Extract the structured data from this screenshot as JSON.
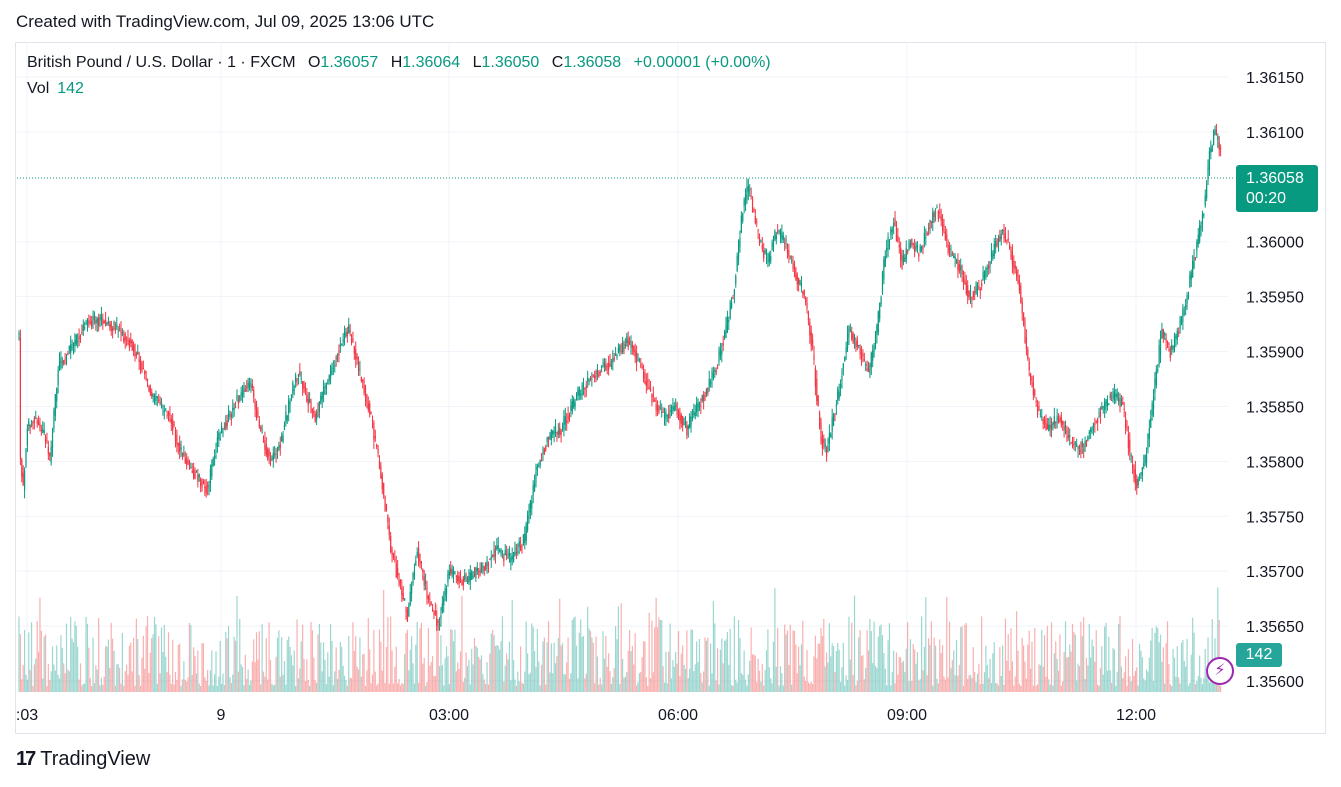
{
  "caption": "Created with TradingView.com, Jul 09, 2025 13:06 UTC",
  "legend": {
    "symbol": "British Pound / U.S. Dollar · 1 · FXCM",
    "open_label": "O",
    "open": "1.36057",
    "high_label": "H",
    "high": "1.36064",
    "low_label": "L",
    "low": "1.36050",
    "close_label": "C",
    "close": "1.36058",
    "change": "+0.00001 (+0.00%)"
  },
  "volume_legend": {
    "label": "Vol",
    "value": "142"
  },
  "last_price_badge": {
    "price": "1.36058",
    "countdown": "00:20"
  },
  "volume_badge": "142",
  "footer": {
    "logo": "17",
    "brand": "TradingView"
  },
  "colors": {
    "up": "#089981",
    "down": "#f23645",
    "up_volume": "#26a69a",
    "down_volume": "#ef5350",
    "grid": "#f0f3fa"
  },
  "chart_data": {
    "type": "candlestick",
    "y_ticks": [
      "1.36150",
      "1.36100",
      "1.36000",
      "1.35950",
      "1.35900",
      "1.35850",
      "1.35800",
      "1.35750",
      "1.35700",
      "1.35650",
      "1.35600"
    ],
    "ylim": [
      1.35595,
      1.36172
    ],
    "x_ticks": [
      ":03",
      "9",
      "03:00",
      "06:00",
      "09:00",
      "12:00"
    ],
    "last_price": 1.36058,
    "anchors": [
      [
        0,
        1.35915
      ],
      [
        1,
        1.358
      ],
      [
        3,
        1.35775
      ],
      [
        6,
        1.3583
      ],
      [
        10,
        1.3584
      ],
      [
        18,
        1.35825
      ],
      [
        22,
        1.358
      ],
      [
        28,
        1.35885
      ],
      [
        36,
        1.359
      ],
      [
        48,
        1.35925
      ],
      [
        60,
        1.3593
      ],
      [
        70,
        1.3592
      ],
      [
        82,
        1.35905
      ],
      [
        95,
        1.3586
      ],
      [
        108,
        1.3584
      ],
      [
        115,
        1.3581
      ],
      [
        125,
        1.3579
      ],
      [
        135,
        1.35775
      ],
      [
        142,
        1.3582
      ],
      [
        150,
        1.3584
      ],
      [
        158,
        1.3586
      ],
      [
        166,
        1.3587
      ],
      [
        172,
        1.3583
      ],
      [
        180,
        1.358
      ],
      [
        188,
        1.3582
      ],
      [
        194,
        1.3586
      ],
      [
        200,
        1.3588
      ],
      [
        206,
        1.3586
      ],
      [
        212,
        1.3584
      ],
      [
        220,
        1.3587
      ],
      [
        228,
        1.359
      ],
      [
        236,
        1.3592
      ],
      [
        244,
        1.3588
      ],
      [
        252,
        1.3584
      ],
      [
        260,
        1.3578
      ],
      [
        266,
        1.3572
      ],
      [
        272,
        1.3569
      ],
      [
        278,
        1.3566
      ],
      [
        285,
        1.3572
      ],
      [
        292,
        1.3568
      ],
      [
        300,
        1.3565
      ],
      [
        308,
        1.357
      ],
      [
        318,
        1.3569
      ],
      [
        330,
        1.357
      ],
      [
        342,
        1.3572
      ],
      [
        352,
        1.3571
      ],
      [
        362,
        1.3573
      ],
      [
        370,
        1.3579
      ],
      [
        378,
        1.3582
      ],
      [
        388,
        1.3583
      ],
      [
        400,
        1.3586
      ],
      [
        412,
        1.3588
      ],
      [
        424,
        1.3589
      ],
      [
        436,
        1.3591
      ],
      [
        444,
        1.3589
      ],
      [
        452,
        1.3586
      ],
      [
        462,
        1.3584
      ],
      [
        470,
        1.3585
      ],
      [
        478,
        1.3583
      ],
      [
        486,
        1.3585
      ],
      [
        494,
        1.3587
      ],
      [
        500,
        1.3589
      ],
      [
        506,
        1.3592
      ],
      [
        512,
        1.3596
      ],
      [
        518,
        1.3603
      ],
      [
        522,
        1.3605
      ],
      [
        530,
        1.36
      ],
      [
        536,
        1.3598
      ],
      [
        542,
        1.3601
      ],
      [
        548,
        1.36
      ],
      [
        556,
        1.3597
      ],
      [
        562,
        1.3595
      ],
      [
        568,
        1.359
      ],
      [
        574,
        1.3582
      ],
      [
        578,
        1.3581
      ],
      [
        586,
        1.3586
      ],
      [
        594,
        1.3592
      ],
      [
        602,
        1.359
      ],
      [
        608,
        1.3588
      ],
      [
        614,
        1.3592
      ],
      [
        620,
        1.3599
      ],
      [
        626,
        1.3602
      ],
      [
        632,
        1.3598
      ],
      [
        638,
        1.36
      ],
      [
        644,
        1.3599
      ],
      [
        650,
        1.3601
      ],
      [
        656,
        1.3603
      ],
      [
        660,
        1.3602
      ],
      [
        666,
        1.3599
      ],
      [
        672,
        1.3598
      ],
      [
        680,
        1.3595
      ],
      [
        688,
        1.3596
      ],
      [
        694,
        1.3598
      ],
      [
        700,
        1.36
      ],
      [
        704,
        1.3601
      ],
      [
        710,
        1.3599
      ],
      [
        716,
        1.3596
      ],
      [
        722,
        1.3589
      ],
      [
        728,
        1.3585
      ],
      [
        736,
        1.3583
      ],
      [
        744,
        1.3584
      ],
      [
        752,
        1.3582
      ],
      [
        760,
        1.3581
      ],
      [
        768,
        1.3583
      ],
      [
        776,
        1.3585
      ],
      [
        784,
        1.3586
      ],
      [
        790,
        1.3585
      ],
      [
        796,
        1.358
      ],
      [
        800,
        1.3578
      ],
      [
        806,
        1.358
      ],
      [
        812,
        1.3586
      ],
      [
        818,
        1.3592
      ],
      [
        824,
        1.359
      ],
      [
        830,
        1.3592
      ],
      [
        836,
        1.3595
      ],
      [
        842,
        1.3599
      ],
      [
        848,
        1.3603
      ],
      [
        852,
        1.3608
      ],
      [
        856,
        1.361
      ],
      [
        860,
        1.3608
      ]
    ],
    "volume_range": [
      0,
      1400
    ]
  }
}
